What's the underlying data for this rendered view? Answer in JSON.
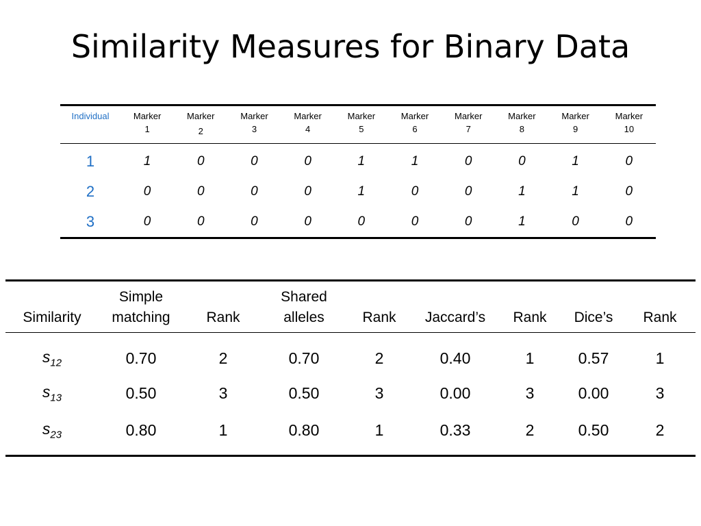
{
  "slide": {
    "title": "Similarity Measures for Binary Data"
  },
  "marker_table": {
    "individual_header": "Individual",
    "marker_word": "Marker",
    "marker_numbers": [
      "1",
      "2",
      "3",
      "4",
      "5",
      "6",
      "7",
      "8",
      "9",
      "10"
    ],
    "rows": [
      {
        "id": "1",
        "values": [
          "1",
          "0",
          "0",
          "0",
          "1",
          "1",
          "0",
          "0",
          "1",
          "0"
        ]
      },
      {
        "id": "2",
        "values": [
          "0",
          "0",
          "0",
          "0",
          "1",
          "0",
          "0",
          "1",
          "1",
          "0"
        ]
      },
      {
        "id": "3",
        "values": [
          "0",
          "0",
          "0",
          "0",
          "0",
          "0",
          "0",
          "1",
          "0",
          "0"
        ]
      }
    ],
    "accent_color": "#1f6fc5"
  },
  "similarity_table": {
    "headers": {
      "similarity": "Similarity",
      "simple_line1": "Simple",
      "simple_line2": "matching",
      "rank": "Rank",
      "shared_line1": "Shared",
      "shared_line2": "alleles",
      "jaccard": "Jaccard’s",
      "dice": "Dice’s"
    },
    "rows": [
      {
        "sym": "s",
        "sub": "12",
        "simple": "0.70",
        "simple_rank": "2",
        "shared": "0.70",
        "shared_rank": "2",
        "jaccard": "0.40",
        "jaccard_rank": "1",
        "dice": "0.57",
        "dice_rank": "1"
      },
      {
        "sym": "s",
        "sub": "13",
        "simple": "0.50",
        "simple_rank": "3",
        "shared": "0.50",
        "shared_rank": "3",
        "jaccard": "0.00",
        "jaccard_rank": "3",
        "dice": "0.00",
        "dice_rank": "3"
      },
      {
        "sym": "s",
        "sub": "23",
        "simple": "0.80",
        "simple_rank": "1",
        "shared": "0.80",
        "shared_rank": "1",
        "jaccard": "0.33",
        "jaccard_rank": "2",
        "dice": "0.50",
        "dice_rank": "2"
      }
    ]
  }
}
